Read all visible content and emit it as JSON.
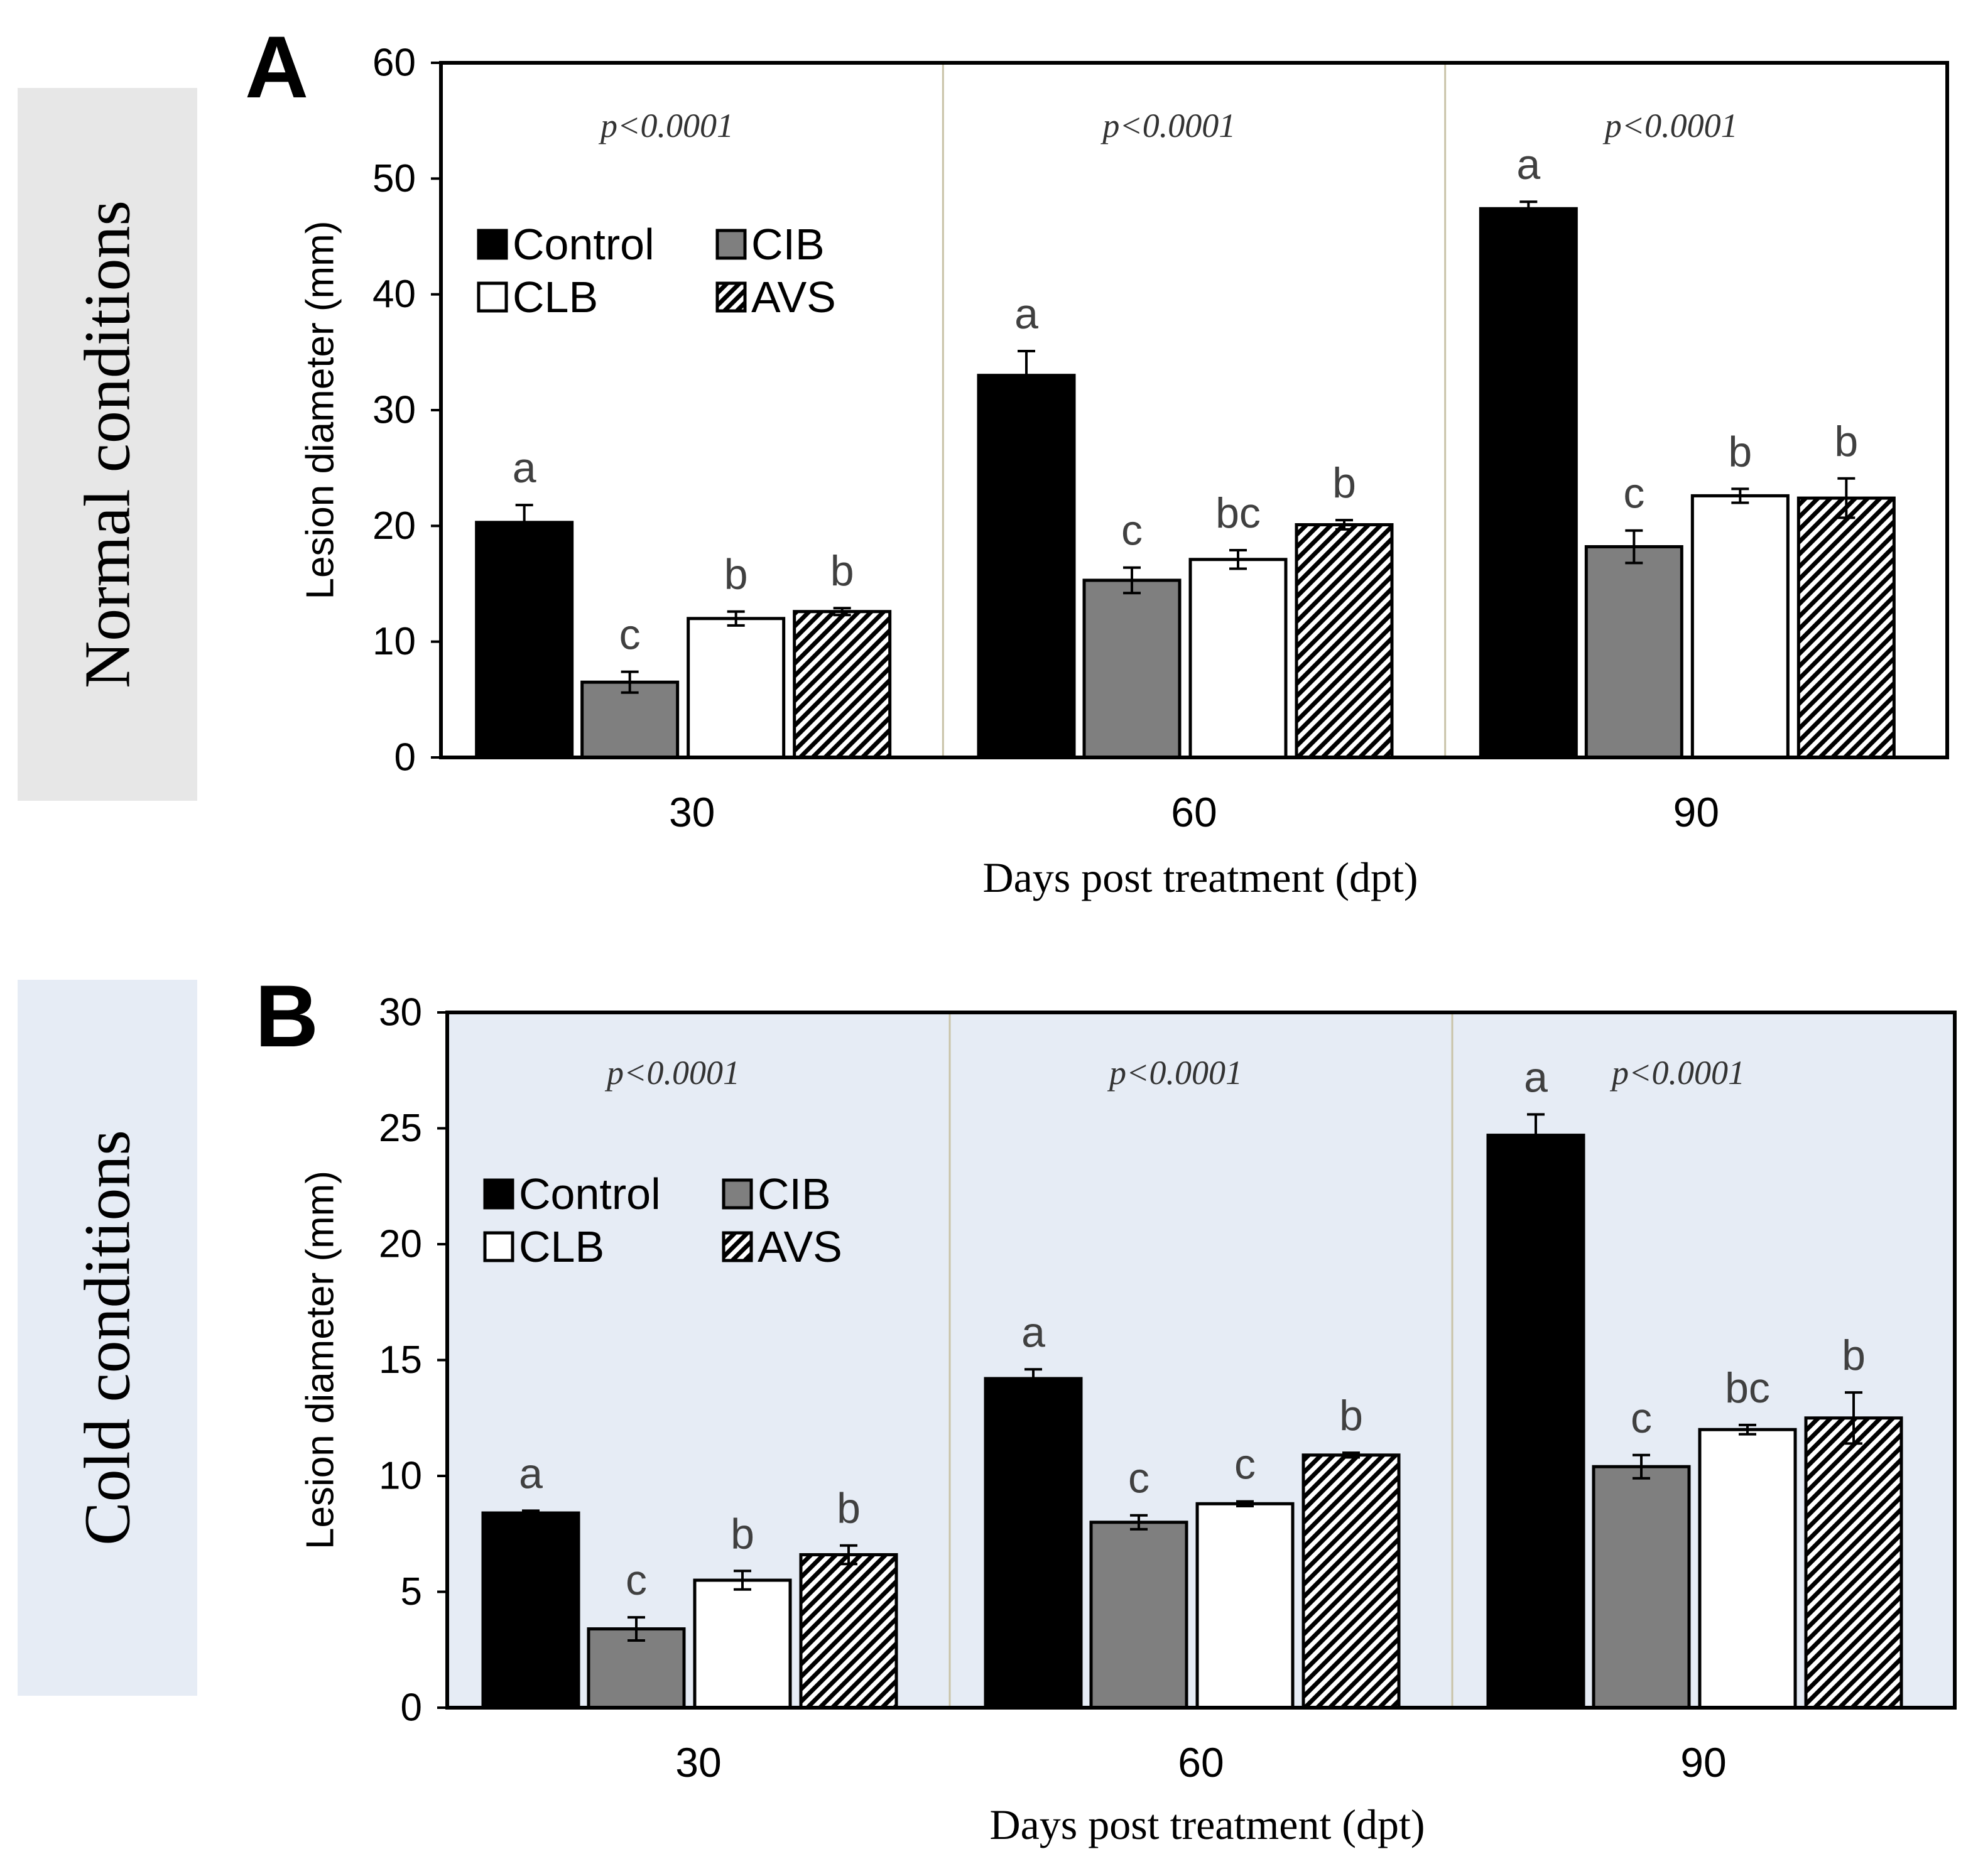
{
  "figure": {
    "colors": {
      "control": "#000000",
      "cib": "#7f7f7f",
      "clb": "#ffffff",
      "avs_stripe": "#000000",
      "panel_a_label_bg": "#e7e7e7",
      "panel_b_label_bg": "#e6ecf5",
      "panel_b_plot_bg": "#e6ecf5",
      "separator": "#c9c3a8"
    }
  },
  "chart_data": [
    {
      "type": "bar",
      "panel_letter": "A",
      "side_label": "Normal conditions",
      "title": "",
      "xlabel": "Days post treatment (dpt)",
      "ylabel": "Lesion diameter (mm)",
      "ylim": [
        0,
        60
      ],
      "yticks": [
        0,
        10,
        20,
        30,
        40,
        50,
        60
      ],
      "categories": [
        "30",
        "60",
        "90"
      ],
      "legend": [
        "Control",
        "CIB",
        "CLB",
        "AVS"
      ],
      "legend_position": "upper-left",
      "pvalues": [
        "p<0.0001",
        "p<0.0001",
        "p<0.0001"
      ],
      "series": [
        {
          "name": "Control",
          "values": [
            20.3,
            33.0,
            47.4
          ],
          "errors": [
            1.5,
            2.1,
            0.6
          ],
          "letters": [
            "a",
            "a",
            "a"
          ]
        },
        {
          "name": "CIB",
          "values": [
            6.5,
            15.3,
            18.2
          ],
          "errors": [
            0.9,
            1.1,
            1.4
          ],
          "letters": [
            "c",
            "c",
            "c"
          ]
        },
        {
          "name": "CLB",
          "values": [
            12.0,
            17.1,
            22.6
          ],
          "errors": [
            0.6,
            0.8,
            0.6
          ],
          "letters": [
            "b",
            "bc",
            "b"
          ]
        },
        {
          "name": "AVS",
          "values": [
            12.6,
            20.1,
            22.4
          ],
          "errors": [
            0.3,
            0.4,
            1.7
          ],
          "letters": [
            "b",
            "b",
            "b"
          ]
        }
      ]
    },
    {
      "type": "bar",
      "panel_letter": "B",
      "side_label": "Cold conditions",
      "title": "",
      "xlabel": "Days post treatment (dpt)",
      "ylabel": "Lesion diameter (mm)",
      "ylim": [
        0,
        30
      ],
      "yticks": [
        0,
        5,
        10,
        15,
        20,
        25,
        30
      ],
      "categories": [
        "30",
        "60",
        "90"
      ],
      "legend": [
        "Control",
        "CIB",
        "CLB",
        "AVS"
      ],
      "legend_position": "upper-left",
      "pvalues": [
        "p<0.0001",
        "p<0.0001",
        "p<0.0001"
      ],
      "series": [
        {
          "name": "Control",
          "values": [
            8.4,
            14.2,
            24.7
          ],
          "errors": [
            0.1,
            0.4,
            0.9
          ],
          "letters": [
            "a",
            "a",
            "a"
          ]
        },
        {
          "name": "CIB",
          "values": [
            3.4,
            8.0,
            10.4
          ],
          "errors": [
            0.5,
            0.3,
            0.5
          ],
          "letters": [
            "c",
            "c",
            "c"
          ]
        },
        {
          "name": "CLB",
          "values": [
            5.5,
            8.8,
            12.0
          ],
          "errors": [
            0.4,
            0.1,
            0.2
          ],
          "letters": [
            "b",
            "c",
            "bc"
          ]
        },
        {
          "name": "AVS",
          "values": [
            6.6,
            10.9,
            12.5
          ],
          "errors": [
            0.4,
            0.1,
            1.1
          ],
          "letters": [
            "b",
            "b",
            "b"
          ]
        }
      ]
    }
  ]
}
